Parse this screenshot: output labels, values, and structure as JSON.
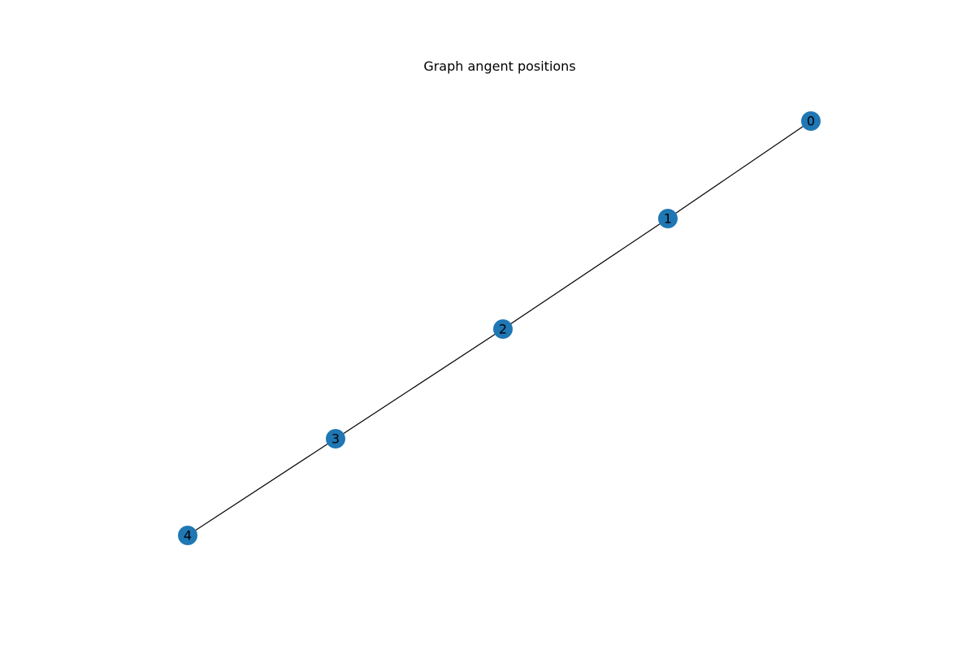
{
  "title": "Graph angent positions",
  "colors": {
    "node": "#1f77b4",
    "edge": "#000000",
    "label": "#000000",
    "background": "#ffffff"
  },
  "nodes": [
    {
      "id": "0"
    },
    {
      "id": "1"
    },
    {
      "id": "2"
    },
    {
      "id": "3"
    },
    {
      "id": "4"
    }
  ],
  "edges": [
    [
      "0",
      "1"
    ],
    [
      "1",
      "2"
    ],
    [
      "2",
      "3"
    ],
    [
      "3",
      "4"
    ]
  ]
}
